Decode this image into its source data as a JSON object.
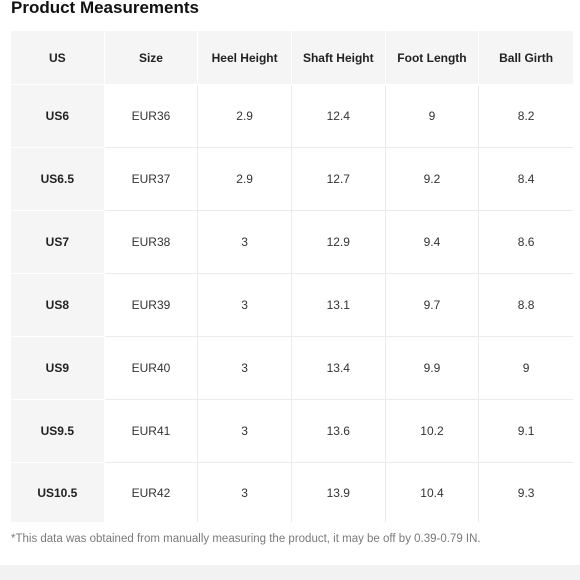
{
  "page": {
    "title": "Product Measurements",
    "note": "*This data was obtained from manually measuring the product, it may be off by 0.39-0.79 IN."
  },
  "table": {
    "headers": [
      "US",
      "Size",
      "Heel Height",
      "Shaft Height",
      "Foot Length",
      "Ball Girth"
    ],
    "rows": [
      [
        "US6",
        "EUR36",
        "2.9",
        "12.4",
        "9",
        "8.2"
      ],
      [
        "US6.5",
        "EUR37",
        "2.9",
        "12.7",
        "9.2",
        "8.4"
      ],
      [
        "US7",
        "EUR38",
        "3",
        "12.9",
        "9.4",
        "8.6"
      ],
      [
        "US8",
        "EUR39",
        "3",
        "13.1",
        "9.7",
        "8.8"
      ],
      [
        "US9",
        "EUR40",
        "3",
        "13.4",
        "9.9",
        "9"
      ],
      [
        "US9.5",
        "EUR41",
        "3",
        "13.6",
        "10.2",
        "9.1"
      ],
      [
        "US10.5",
        "EUR42",
        "3",
        "13.9",
        "10.4",
        "9.3"
      ]
    ]
  }
}
